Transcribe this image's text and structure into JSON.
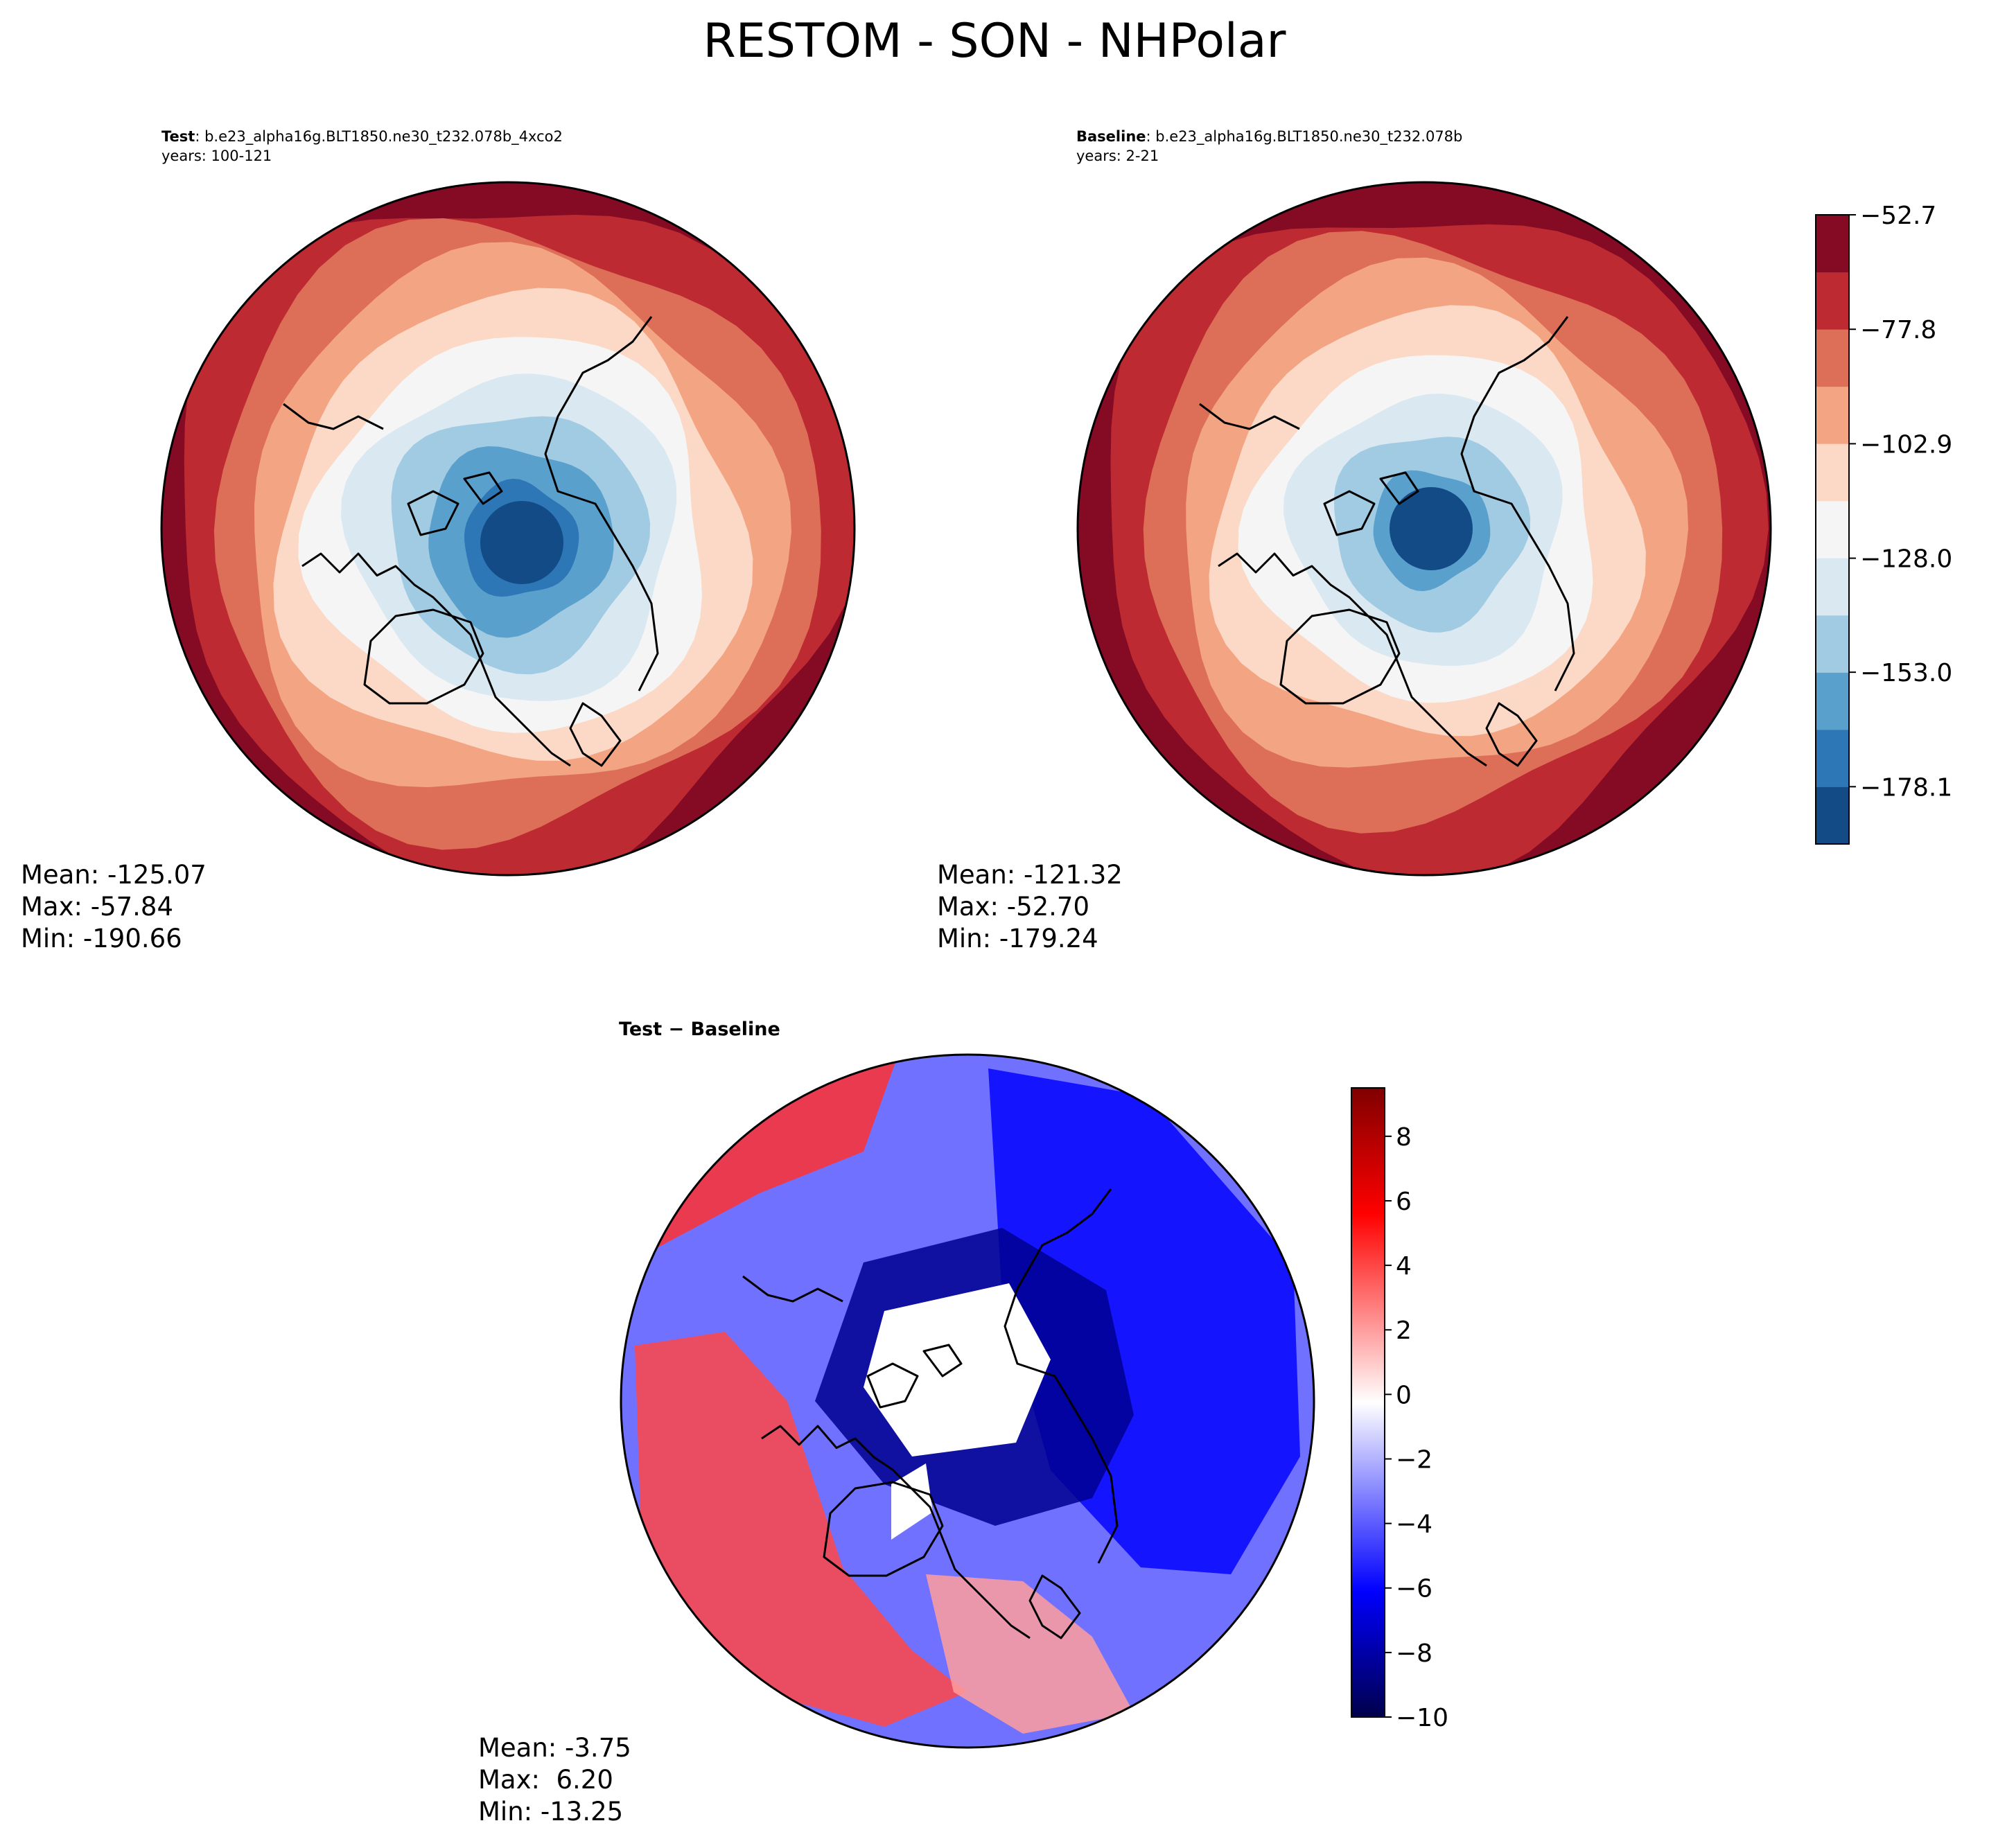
{
  "title": "RESTOM - SON - NHPolar",
  "colors": {
    "rdbu": [
      "#134b87",
      "#2e77b6",
      "#5aa0cd",
      "#a1cbe2",
      "#d9e8f1",
      "#f5f5f5",
      "#fbd9c6",
      "#f3a482",
      "#dd6e58",
      "#be2a31",
      "#850b25"
    ],
    "seismic": [
      "#00004c",
      "#0000ff",
      "#ffffff",
      "#ff0000",
      "#800000"
    ],
    "land": "#ffffff",
    "coast": "#000000"
  },
  "panels": {
    "test": {
      "label": "Test",
      "case": ": b.e23_alpha16g.BLT1850.ne30_t232.078b_4xco2",
      "years": "years: 100-121",
      "mean": "Mean: -125.07",
      "max": "Max: -57.84",
      "min": "Min: -190.66"
    },
    "baseline": {
      "label": "Baseline",
      "case": ": b.e23_alpha16g.BLT1850.ne30_t232.078b",
      "years": "years: 2-21",
      "mean": "Mean: -121.32",
      "max": "Max: -52.70",
      "min": "Min: -179.24"
    },
    "diff": {
      "label": "Test − Baseline",
      "mean": "Mean: -3.75",
      "max": "Max:  6.20",
      "min": "Min: -13.25"
    }
  },
  "chart_data": [
    {
      "type": "heatmap",
      "name": "test",
      "projection": "north-polar-stereographic",
      "levels": [
        -190.66,
        -178.1,
        -165.6,
        -153.0,
        -140.5,
        -128.0,
        -115.4,
        -102.9,
        -90.3,
        -77.8,
        -65.2,
        -52.7
      ],
      "pole_value": -186,
      "edge_value": -60,
      "stats": {
        "mean": -125.07,
        "max": -57.84,
        "min": -190.66
      }
    },
    {
      "type": "heatmap",
      "name": "baseline",
      "projection": "north-polar-stereographic",
      "levels": [
        -190.66,
        -178.1,
        -165.6,
        -153.0,
        -140.5,
        -128.0,
        -115.4,
        -102.9,
        -90.3,
        -77.8,
        -65.2,
        -52.7
      ],
      "pole_value": -172,
      "edge_value": -57,
      "stats": {
        "mean": -121.32,
        "max": -52.7,
        "min": -179.24
      },
      "colorbar": {
        "ticks": [
          -52.7,
          -77.8,
          -102.9,
          -128.0,
          -153.0,
          -178.1
        ],
        "tick_labels": [
          "−52.7",
          "−77.8",
          "−102.9",
          "−128.0",
          "−153.0",
          "−178.1"
        ]
      }
    },
    {
      "type": "heatmap",
      "name": "difference",
      "projection": "north-polar-stereographic",
      "range": [
        -10,
        9.5
      ],
      "stats": {
        "mean": -3.75,
        "max": 6.2,
        "min": -13.25
      },
      "regions": [
        {
          "label": "central-arctic-masked",
          "value": null
        },
        {
          "label": "greenland-masked",
          "value": null
        },
        {
          "label": "arctic-ring",
          "value": -8.5
        },
        {
          "label": "north-pacific",
          "value": 4.5
        },
        {
          "label": "north-america",
          "value": 4
        },
        {
          "label": "north-atlantic",
          "value": 2
        },
        {
          "label": "eurasia",
          "value": -6
        }
      ],
      "colorbar": {
        "ticks": [
          8,
          6,
          4,
          2,
          0,
          -2,
          -4,
          -6,
          -8,
          -10
        ],
        "tick_labels": [
          "8",
          "6",
          "4",
          "2",
          "0",
          "−2",
          "−4",
          "−6",
          "−8",
          "−10"
        ]
      }
    }
  ]
}
